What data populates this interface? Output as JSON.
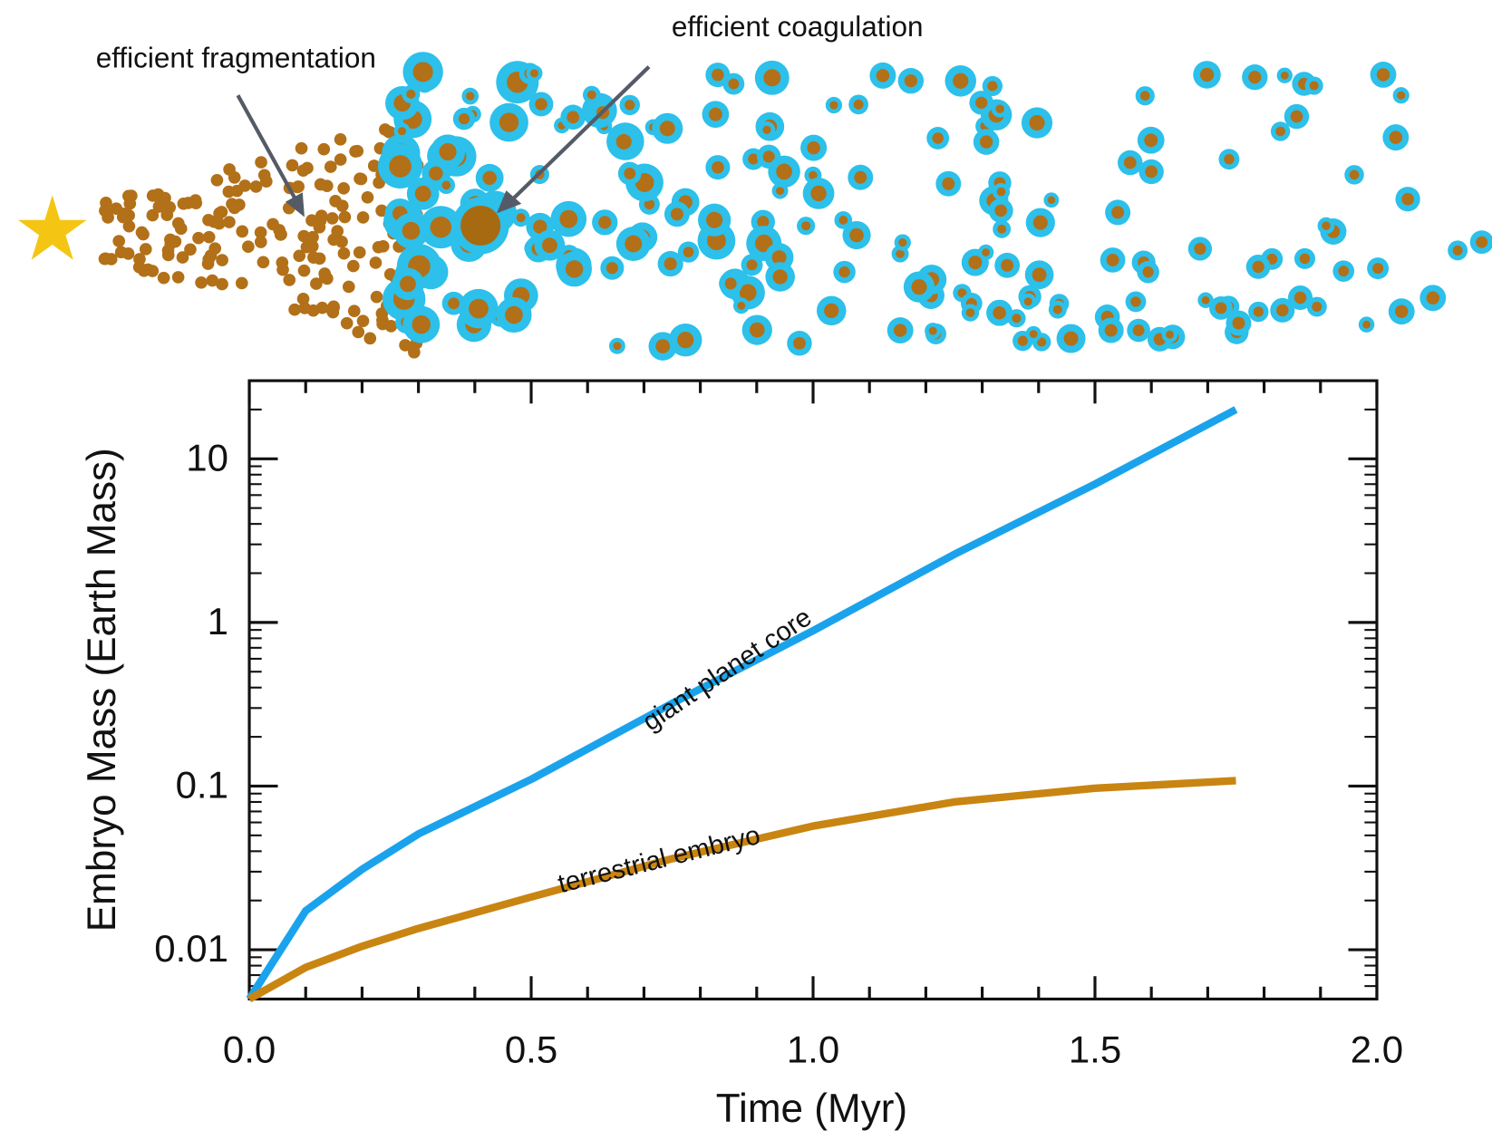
{
  "chart_data": {
    "type": "line",
    "annotations": [
      "efficient fragmentation",
      "efficient coagulation"
    ],
    "x_label": "Time (Myr)",
    "y_label": "Embryo Mass (Earth Mass)",
    "x": [
      0,
      0.1,
      0.2,
      0.3,
      0.5,
      0.75,
      1.0,
      1.25,
      1.5,
      1.75
    ],
    "series": [
      {
        "name": "giant planet core",
        "color": "#1aa3ec",
        "values": [
          0.005,
          0.0173,
          0.031,
          0.051,
          0.11,
          0.32,
          0.89,
          2.6,
          7.0,
          20
        ]
      },
      {
        "name": "terrestrial embryo",
        "color": "#c98512",
        "values": [
          0.005,
          0.0078,
          0.0105,
          0.0135,
          0.021,
          0.036,
          0.057,
          0.08,
          0.097,
          0.108
        ]
      }
    ],
    "xlim": [
      0,
      2.0
    ],
    "xticks": [
      {
        "value": 0,
        "label": "0.0"
      },
      0.5,
      {
        "value": 1.0,
        "label": "1.0"
      },
      1.5,
      {
        "value": 2.0,
        "label": "2.0"
      }
    ],
    "xminorticks": [
      0.1,
      0.2,
      0.3,
      0.4,
      0.6,
      0.7,
      0.8,
      0.9,
      1.1,
      1.2,
      1.3,
      1.4,
      1.6,
      1.7,
      1.8,
      1.9
    ],
    "ylim": [
      0.005,
      30
    ],
    "yticks": [
      0.01,
      0.1,
      1,
      10
    ],
    "ylog": true
  }
}
